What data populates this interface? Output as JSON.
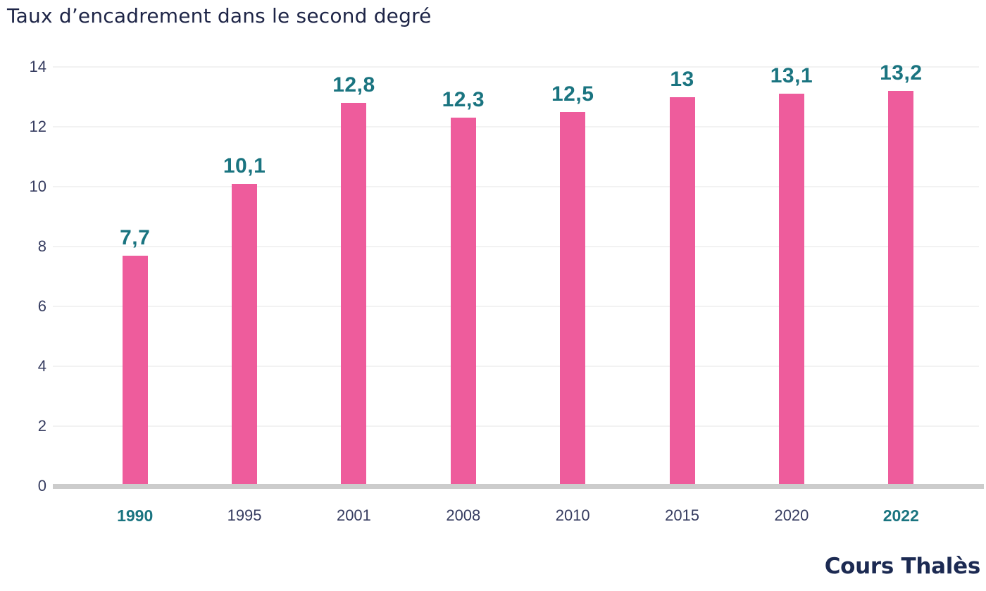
{
  "page": {
    "title": "Taux d’encadrement dans le second degré",
    "logo": "Cours Thalès"
  },
  "colors": {
    "bar": "#ee5c9c",
    "value_label": "#1a7480",
    "highlight_text": "#1a7480",
    "axis_text": "#363c60",
    "title_text": "#1e2547",
    "logo_text": "#1c2a52",
    "axis_line": "#cccccc",
    "gridline": "#f2f2f2"
  },
  "chart_data": {
    "type": "bar",
    "title": "Taux d’encadrement dans le second degré",
    "categories": [
      "1990",
      "1995",
      "2001",
      "2008",
      "2010",
      "2015",
      "2020",
      "2022"
    ],
    "values": [
      7.7,
      10.1,
      12.8,
      12.3,
      12.5,
      13,
      13.1,
      13.2
    ],
    "value_labels": [
      "7,7",
      "10,1",
      "12,8",
      "12,3",
      "12,5",
      "13",
      "13,1",
      "13,2"
    ],
    "highlighted_categories": [
      "1990",
      "2022"
    ],
    "y_ticks": [
      0,
      2,
      4,
      6,
      8,
      10,
      12,
      14
    ],
    "ylim": [
      0,
      14
    ],
    "xlabel": "",
    "ylabel": "",
    "grid": true,
    "legend": null,
    "bar_color": "#ee5c9c",
    "value_label_color": "#1a7480"
  }
}
